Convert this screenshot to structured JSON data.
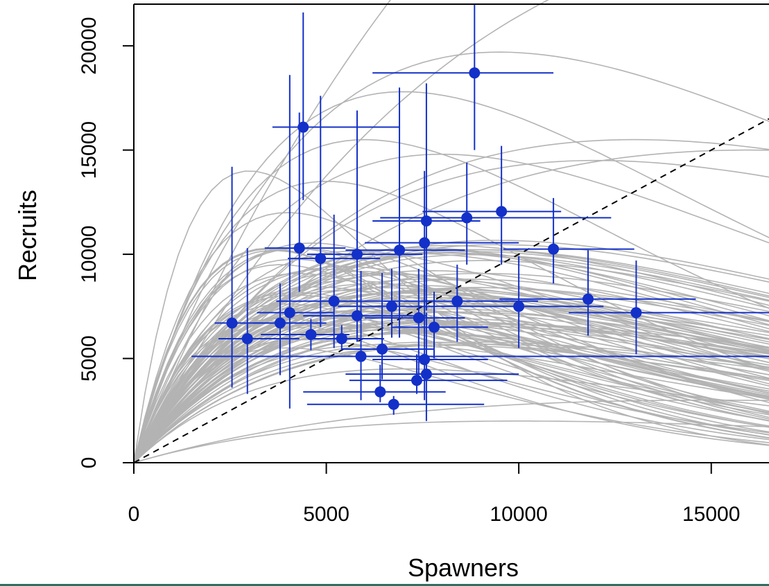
{
  "chart_data": {
    "type": "scatter",
    "xlabel": "Spawners",
    "ylabel": "Recruits",
    "xlim": [
      0,
      16500
    ],
    "ylim": [
      0,
      22000
    ],
    "x_ticks": [
      0,
      5000,
      10000,
      15000
    ],
    "x_tick_labels": [
      "0",
      "5000",
      "10000",
      "15000"
    ],
    "y_ticks": [
      0,
      5000,
      10000,
      15000,
      20000
    ],
    "y_tick_labels": [
      "0",
      "5000",
      "10000",
      "15000",
      "20000"
    ],
    "grid": false,
    "colors": {
      "points": "#1330c8",
      "curves": "#b3b3b3",
      "replacement_line": "#000000"
    },
    "replacement_line": {
      "style": "dashed",
      "slope": 1
    },
    "points": [
      {
        "x": 8850,
        "y": 18700,
        "x_err": [
          6200,
          10900
        ],
        "y_err": [
          15000,
          22000
        ]
      },
      {
        "x": 4400,
        "y": 16100,
        "x_err": [
          3600,
          6900
        ],
        "y_err": [
          12600,
          21600
        ]
      },
      {
        "x": 9550,
        "y": 12050,
        "x_err": [
          7500,
          11100
        ],
        "y_err": [
          9500,
          15200
        ]
      },
      {
        "x": 7600,
        "y": 11600,
        "x_err": [
          6200,
          9000
        ],
        "y_err": [
          7300,
          18200
        ]
      },
      {
        "x": 8650,
        "y": 11750,
        "x_err": [
          6400,
          12400
        ],
        "y_err": [
          9500,
          14400
        ]
      },
      {
        "x": 4300,
        "y": 10300,
        "x_err": [
          3400,
          5500
        ],
        "y_err": [
          8200,
          16800
        ]
      },
      {
        "x": 7550,
        "y": 10550,
        "x_err": [
          6000,
          10000
        ],
        "y_err": [
          7500,
          14000
        ]
      },
      {
        "x": 10900,
        "y": 10250,
        "x_err": [
          9600,
          13000
        ],
        "y_err": [
          8600,
          12700
        ]
      },
      {
        "x": 5800,
        "y": 10000,
        "x_err": [
          4500,
          7500
        ],
        "y_err": [
          7000,
          16900
        ]
      },
      {
        "x": 6900,
        "y": 10200,
        "x_err": [
          5500,
          8600
        ],
        "y_err": [
          6000,
          18000
        ]
      },
      {
        "x": 4850,
        "y": 9800,
        "x_err": [
          4000,
          6400
        ],
        "y_err": [
          6500,
          17600
        ]
      },
      {
        "x": 5200,
        "y": 7750,
        "x_err": [
          3700,
          6700
        ],
        "y_err": [
          5500,
          11900
        ]
      },
      {
        "x": 6700,
        "y": 7500,
        "x_err": [
          5300,
          8300
        ],
        "y_err": [
          6000,
          9300
        ]
      },
      {
        "x": 8400,
        "y": 7750,
        "x_err": [
          6500,
          10500
        ],
        "y_err": [
          5800,
          9500
        ]
      },
      {
        "x": 10000,
        "y": 7500,
        "x_err": [
          8000,
          12200
        ],
        "y_err": [
          5500,
          9900
        ]
      },
      {
        "x": 11800,
        "y": 7850,
        "x_err": [
          9500,
          14600
        ],
        "y_err": [
          6100,
          10200
        ]
      },
      {
        "x": 13050,
        "y": 7200,
        "x_err": [
          11300,
          16500
        ],
        "y_err": [
          5200,
          9700
        ]
      },
      {
        "x": 4050,
        "y": 7200,
        "x_err": [
          3200,
          5200
        ],
        "y_err": [
          2600,
          18600
        ]
      },
      {
        "x": 2550,
        "y": 6700,
        "x_err": [
          2100,
          4000
        ],
        "y_err": [
          3600,
          14200
        ]
      },
      {
        "x": 3800,
        "y": 6700,
        "x_err": [
          3100,
          5000
        ],
        "y_err": [
          4200,
          8600
        ]
      },
      {
        "x": 5800,
        "y": 7050,
        "x_err": [
          4400,
          7600
        ],
        "y_err": [
          5800,
          11700
        ]
      },
      {
        "x": 7400,
        "y": 6950,
        "x_err": [
          6000,
          8600
        ],
        "y_err": [
          4200,
          9300
        ]
      },
      {
        "x": 7800,
        "y": 6500,
        "x_err": [
          6700,
          9200
        ],
        "y_err": [
          5000,
          8200
        ]
      },
      {
        "x": 2950,
        "y": 5950,
        "x_err": [
          2200,
          4300
        ],
        "y_err": [
          3300,
          10300
        ]
      },
      {
        "x": 4600,
        "y": 6150,
        "x_err": [
          3300,
          5600
        ],
        "y_err": [
          5400,
          6900
        ]
      },
      {
        "x": 5400,
        "y": 5950,
        "x_err": [
          4600,
          6500
        ],
        "y_err": [
          5400,
          6600
        ]
      },
      {
        "x": 5900,
        "y": 5100,
        "x_err": [
          1500,
          16500
        ],
        "y_err": [
          3000,
          9200
        ]
      },
      {
        "x": 6450,
        "y": 5450,
        "x_err": [
          5400,
          7800
        ],
        "y_err": [
          4000,
          9100
        ]
      },
      {
        "x": 7550,
        "y": 4950,
        "x_err": [
          6200,
          9200
        ],
        "y_err": [
          3000,
          9100
        ]
      },
      {
        "x": 7350,
        "y": 3950,
        "x_err": [
          5600,
          9700
        ],
        "y_err": [
          3300,
          5200
        ]
      },
      {
        "x": 7600,
        "y": 4250,
        "x_err": [
          5500,
          10000
        ],
        "y_err": [
          2000,
          7200
        ]
      },
      {
        "x": 6400,
        "y": 3400,
        "x_err": [
          4400,
          8100
        ],
        "y_err": [
          2900,
          4700
        ]
      },
      {
        "x": 6750,
        "y": 2800,
        "x_err": [
          4500,
          9100
        ],
        "y_err": [
          2300,
          3200
        ]
      }
    ]
  }
}
